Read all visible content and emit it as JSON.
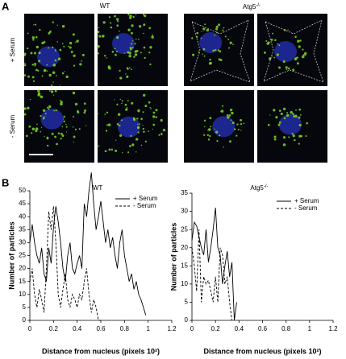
{
  "panel_a": {
    "label": "A",
    "columns": [
      {
        "title": "WT"
      },
      {
        "title": "Atg5",
        "title_superscript": "-/-"
      }
    ],
    "rows": [
      "+ Serum",
      "- Serum"
    ]
  },
  "panel_b": {
    "label": "B"
  },
  "chart_data": [
    {
      "type": "line",
      "title": "WT",
      "x_label": "Distance from nucleus (pixels 10²)",
      "y_label": "Number of particles",
      "xlim": [
        0,
        1.2
      ],
      "xticks": [
        0,
        0.2,
        0.4,
        0.6,
        0.8,
        1,
        1.2
      ],
      "ylim": [
        0,
        50
      ],
      "yticks": [
        0,
        5,
        10,
        15,
        20,
        25,
        30,
        35,
        40,
        45,
        50
      ],
      "legend": "top-right",
      "series": [
        {
          "name": "+ Serum",
          "color": "#000000",
          "dash": "solid",
          "x": [
            0,
            0.02,
            0.04,
            0.06,
            0.08,
            0.1,
            0.12,
            0.14,
            0.16,
            0.18,
            0.2,
            0.22,
            0.24,
            0.26,
            0.28,
            0.3,
            0.32,
            0.34,
            0.36,
            0.38,
            0.4,
            0.42,
            0.44,
            0.46,
            0.48,
            0.5,
            0.52,
            0.54,
            0.56,
            0.58,
            0.6,
            0.62,
            0.64,
            0.66,
            0.68,
            0.7,
            0.72,
            0.74,
            0.76,
            0.78,
            0.8,
            0.82,
            0.84,
            0.86,
            0.88,
            0.9,
            0.92,
            0.94,
            0.96,
            0.98
          ],
          "values": [
            30,
            37,
            30,
            25,
            22,
            28,
            18,
            15,
            28,
            22,
            36,
            44,
            38,
            30,
            20,
            15,
            25,
            30,
            20,
            18,
            22,
            25,
            20,
            45,
            40,
            50,
            57,
            45,
            35,
            40,
            46,
            38,
            30,
            35,
            28,
            32,
            25,
            20,
            30,
            35,
            25,
            20,
            15,
            18,
            12,
            15,
            10,
            8,
            5,
            2
          ]
        },
        {
          "name": "- Serum",
          "color": "#000000",
          "dash": "dashed",
          "x": [
            0,
            0.02,
            0.04,
            0.06,
            0.08,
            0.1,
            0.12,
            0.14,
            0.16,
            0.18,
            0.2,
            0.22,
            0.24,
            0.26,
            0.28,
            0.3,
            0.32,
            0.34,
            0.36,
            0.38,
            0.4,
            0.42,
            0.44,
            0.46,
            0.48,
            0.5,
            0.52,
            0.54,
            0.56,
            0.58,
            0.6
          ],
          "values": [
            15,
            20,
            10,
            5,
            12,
            8,
            3,
            20,
            42,
            35,
            44,
            30,
            10,
            5,
            12,
            18,
            8,
            5,
            10,
            8,
            5,
            10,
            8,
            15,
            20,
            10,
            3,
            8,
            5,
            0,
            0
          ]
        }
      ]
    },
    {
      "type": "line",
      "title": "Atg5",
      "title_superscript": "-/-",
      "x_label": "Distance from nucleus (pixels 10²)",
      "y_label": "Number of particles",
      "xlim": [
        0,
        1.2
      ],
      "xticks": [
        0,
        0.2,
        0.4,
        0.6,
        0.8,
        1,
        1.2
      ],
      "ylim": [
        0,
        35
      ],
      "yticks": [
        0,
        5,
        10,
        15,
        20,
        25,
        30,
        35
      ],
      "legend": "top-right",
      "series": [
        {
          "name": "+ Serum",
          "color": "#000000",
          "dash": "solid",
          "x": [
            0,
            0.02,
            0.04,
            0.06,
            0.08,
            0.1,
            0.12,
            0.14,
            0.16,
            0.18,
            0.2,
            0.22,
            0.24,
            0.26,
            0.28,
            0.3,
            0.32,
            0.34,
            0.36,
            0.38
          ],
          "values": [
            22,
            27,
            26,
            23,
            20,
            18,
            25,
            16,
            20,
            25,
            31,
            20,
            18,
            10,
            15,
            19,
            12,
            16,
            0,
            5
          ]
        },
        {
          "name": "- Serum",
          "color": "#000000",
          "dash": "dashed",
          "x": [
            0,
            0.02,
            0.04,
            0.06,
            0.08,
            0.1,
            0.12,
            0.14,
            0.16,
            0.18,
            0.2,
            0.22,
            0.24,
            0.26,
            0.28,
            0.3,
            0.32,
            0.34
          ],
          "values": [
            20,
            15,
            8,
            25,
            5,
            12,
            10,
            11,
            8,
            5,
            12,
            5,
            20,
            18,
            10,
            12,
            5,
            0
          ]
        }
      ]
    }
  ]
}
